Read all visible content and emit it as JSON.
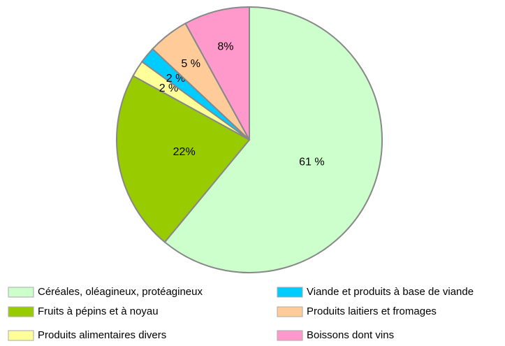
{
  "chart_data": {
    "type": "pie",
    "categories": [
      "Céréales, oléagineux, protéagineux",
      "Fruits à pépins et à noyau",
      "Produits alimentaires divers",
      "Viande et produits à base de viande",
      "Produits laitiers et fromages",
      "Boissons dont vins"
    ],
    "values": [
      61,
      22,
      2,
      2,
      5,
      8
    ],
    "value_labels": [
      "61 %",
      "22%",
      "2 %",
      "2 %",
      "5 %",
      "8%"
    ],
    "colors": [
      "#ccffcc",
      "#99cc00",
      "#ffff99",
      "#00ccff",
      "#ffcc99",
      "#ff99cc"
    ]
  }
}
